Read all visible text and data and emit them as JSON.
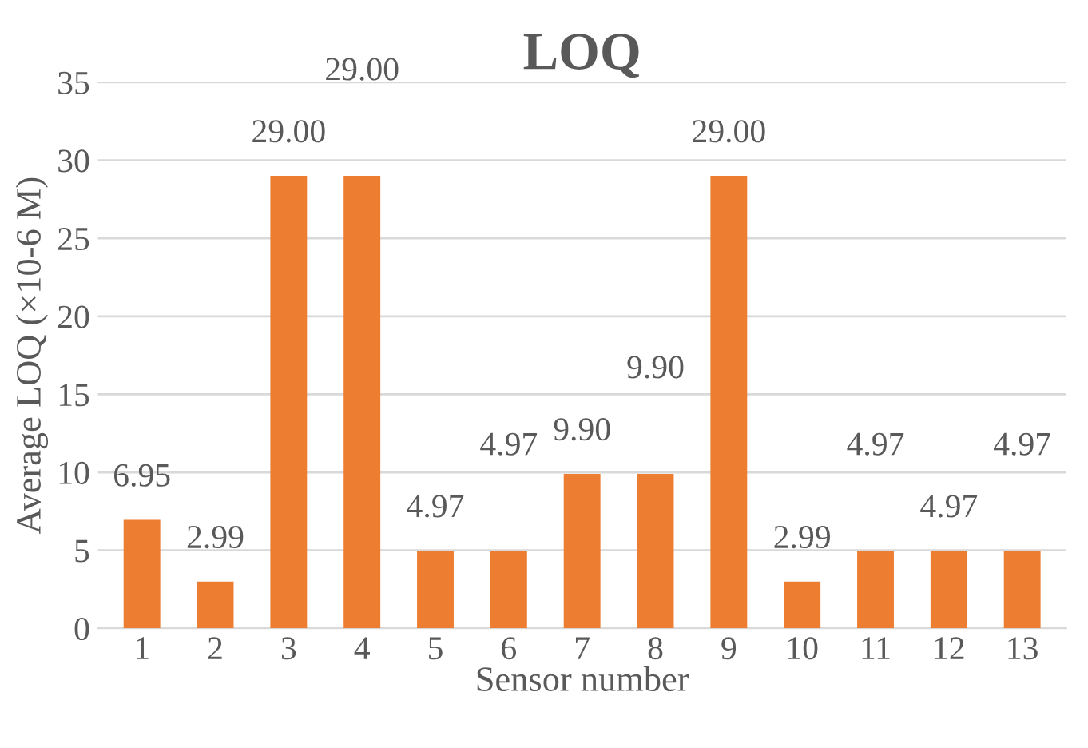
{
  "chart_data": {
    "type": "bar",
    "title": "LOQ",
    "xlabel": "Sensor number",
    "ylabel": "Average LOQ (×10-6 M)",
    "categories": [
      "1",
      "2",
      "3",
      "4",
      "5",
      "6",
      "7",
      "8",
      "9",
      "10",
      "11",
      "12",
      "13"
    ],
    "values": [
      6.95,
      2.99,
      29.0,
      29.0,
      4.97,
      4.97,
      9.9,
      9.9,
      29.0,
      2.99,
      4.97,
      4.97,
      4.97
    ],
    "value_labels": [
      "6.95",
      "2.99",
      "29.00",
      "29.00",
      "4.97",
      "4.97",
      "9.90",
      "9.90",
      "29.00",
      "2.99",
      "4.97",
      "4.97",
      "4.97"
    ],
    "color": "#ed7d31",
    "ylim": [
      0,
      35
    ],
    "yticks": [
      0,
      5,
      10,
      15,
      20,
      25,
      30,
      35
    ],
    "grid": "y"
  }
}
